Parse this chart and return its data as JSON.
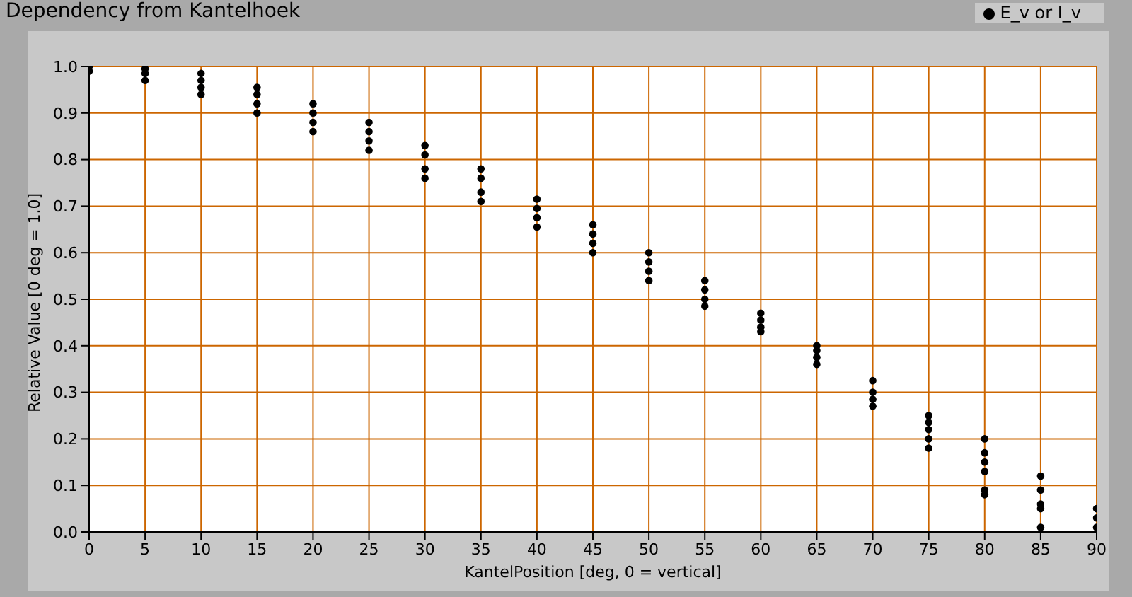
{
  "chart_data": {
    "type": "scatter",
    "title": "Dependency from Kantelhoek",
    "xlabel": "KantelPosition [deg, 0 = vertical]",
    "ylabel": "Relative Value [0 deg = 1.0]",
    "x": [
      0,
      0,
      5,
      5,
      5,
      10,
      10,
      10,
      10,
      15,
      15,
      15,
      15,
      20,
      20,
      20,
      20,
      25,
      25,
      25,
      25,
      30,
      30,
      30,
      30,
      35,
      35,
      35,
      35,
      40,
      40,
      40,
      40,
      45,
      45,
      45,
      45,
      50,
      50,
      50,
      50,
      55,
      55,
      55,
      55,
      60,
      60,
      60,
      60,
      65,
      65,
      65,
      65,
      70,
      70,
      70,
      70,
      75,
      75,
      75,
      75,
      75,
      80,
      80,
      80,
      80,
      80,
      80,
      85,
      85,
      85,
      85,
      85,
      90,
      90,
      90
    ],
    "series": [
      {
        "name": "E_v or I_v",
        "color": "#000000",
        "values": [
          0.99,
          1.0,
          0.97,
          0.985,
          0.995,
          0.94,
          0.955,
          0.97,
          0.985,
          0.9,
          0.92,
          0.94,
          0.955,
          0.86,
          0.88,
          0.9,
          0.92,
          0.82,
          0.84,
          0.86,
          0.88,
          0.76,
          0.78,
          0.81,
          0.83,
          0.71,
          0.73,
          0.76,
          0.78,
          0.655,
          0.675,
          0.695,
          0.715,
          0.6,
          0.62,
          0.64,
          0.66,
          0.54,
          0.56,
          0.58,
          0.6,
          0.485,
          0.5,
          0.52,
          0.54,
          0.43,
          0.44,
          0.455,
          0.47,
          0.36,
          0.375,
          0.39,
          0.4,
          0.27,
          0.285,
          0.3,
          0.325,
          0.18,
          0.2,
          0.22,
          0.235,
          0.25,
          0.08,
          0.09,
          0.13,
          0.15,
          0.17,
          0.2,
          0.01,
          0.05,
          0.06,
          0.09,
          0.12,
          0.01,
          0.03,
          0.05
        ]
      }
    ],
    "xlim": [
      0,
      90
    ],
    "xticks": [
      0,
      5,
      10,
      15,
      20,
      25,
      30,
      35,
      40,
      45,
      50,
      55,
      60,
      65,
      70,
      75,
      80,
      85,
      90
    ],
    "ylim": [
      0,
      1
    ],
    "yticks": [
      {
        "value": 0,
        "label": "0.0"
      },
      {
        "value": 0.1,
        "label": "0.1"
      },
      {
        "value": 0.2,
        "label": "0.2"
      },
      {
        "value": 0.3,
        "label": "0.3"
      },
      {
        "value": 0.4,
        "label": "0.4"
      },
      {
        "value": 0.5,
        "label": "0.5"
      },
      {
        "value": 0.6,
        "label": "0.6"
      },
      {
        "value": 0.7,
        "label": "0.7"
      },
      {
        "value": 0.8,
        "label": "0.8"
      },
      {
        "value": 0.9,
        "label": "0.9"
      },
      {
        "value": 1,
        "label": "1.0"
      }
    ],
    "grid": true,
    "legend": "top right",
    "marker": "circle"
  }
}
